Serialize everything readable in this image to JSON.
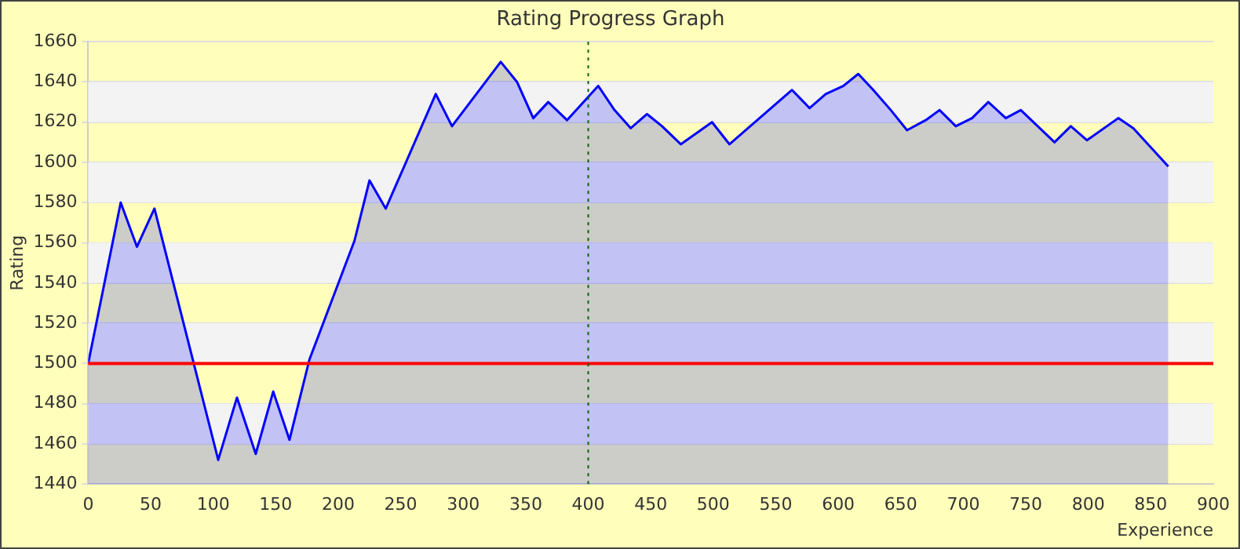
{
  "chart_data": {
    "type": "area",
    "title": "Rating Progress Graph",
    "xlabel": "Experience",
    "ylabel": "Rating",
    "x": [
      0,
      26,
      39,
      53,
      104,
      119,
      134,
      148,
      161,
      177,
      213,
      225,
      238,
      278,
      291,
      330,
      343,
      356,
      368,
      383,
      408,
      421,
      434,
      447,
      459,
      474,
      499,
      513,
      563,
      577,
      590,
      604,
      616,
      628,
      642,
      655,
      670,
      681,
      694,
      707,
      720,
      734,
      746,
      773,
      786,
      799,
      824,
      836,
      864
    ],
    "series": [
      {
        "color": "#0000ff",
        "values": [
          1500,
          1580,
          1558,
          1577,
          1452,
          1483,
          1455,
          1486,
          1462,
          1502,
          1561,
          1591,
          1577,
          1634,
          1618,
          1650,
          1640,
          1622,
          1630,
          1621,
          1638,
          1626,
          1617,
          1624,
          1618,
          1609,
          1620,
          1609,
          1636,
          1627,
          1634,
          1638,
          1644,
          1636,
          1626,
          1616,
          1621,
          1626,
          1618,
          1622,
          1630,
          1622,
          1626,
          1610,
          1618,
          1611,
          1622,
          1617,
          1598
        ]
      }
    ],
    "xlim": [
      0,
      900
    ],
    "xticks": [
      0,
      50,
      100,
      150,
      200,
      250,
      300,
      350,
      400,
      450,
      500,
      550,
      600,
      650,
      700,
      750,
      800,
      850,
      900
    ],
    "ylim": [
      1440,
      1660
    ],
    "yticks": [
      1440,
      1460,
      1480,
      1500,
      1520,
      1540,
      1560,
      1580,
      1600,
      1620,
      1640,
      1660
    ],
    "ref_lines": [
      {
        "axis": "y",
        "value": 1500,
        "color": "#ff0000",
        "line_style": "solid"
      },
      {
        "axis": "x",
        "value": 400,
        "color": "#006600",
        "line_style": "dotted"
      }
    ],
    "grid": "y",
    "legend": false,
    "marker": "none",
    "line_style": "solid"
  }
}
